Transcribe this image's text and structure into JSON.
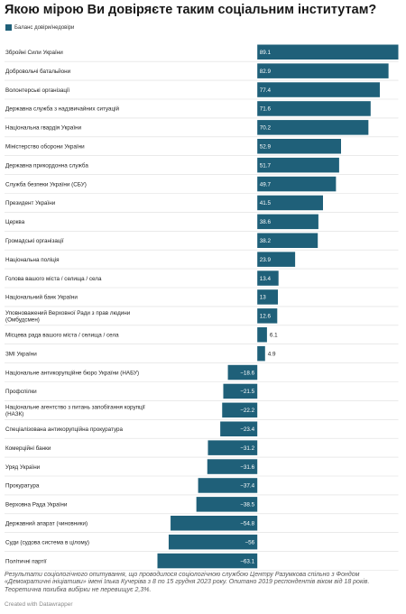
{
  "title": "Якою мірою Ви довіряєте таким соціальним інститутам?",
  "legend": {
    "label": "Баланс довіри/недовіри",
    "color": "#1f6079"
  },
  "chart_data": {
    "type": "bar",
    "orientation": "horizontal",
    "title": "Якою мірою Ви довіряєте таким соціальним інститутам?",
    "series": [
      {
        "name": "Баланс довіри/недовіри",
        "color": "#1f6079"
      }
    ],
    "grid": true,
    "legend_position": "top-left",
    "xlim": [
      -63.1,
      89.1
    ],
    "categories": [
      "Збройні Сили України",
      "Добровольчі батальйони",
      "Волонтерські організації",
      "Державна служба з надзвичайних ситуацій",
      "Національна гвардія України",
      "Міністерство оборони України",
      "Державна прикордонна служба",
      "Служба безпеки України (СБУ)",
      "Президент України",
      "Церква",
      "Громадські організації",
      "Національна поліція",
      "Голова вашого міста / селища / села",
      "Національний банк України",
      "Уповноважений Верховної Ради з прав людини (Омбудсмен)",
      "Місцева рада вашого міста / селища / села",
      "ЗМІ України",
      "Національне антикорупційне бюро України (НАБУ)",
      "Профспілки",
      "Національне агентство з питань запобігання корупції (НАЗК)",
      "Спеціалізована антикорупційна прокуратура",
      "Комерційні банки",
      "Уряд України",
      "Прокуратура",
      "Верховна Рада України",
      "Державний апарат (чиновники)",
      "Суди (судова система в цілому)",
      "Політичні партії"
    ],
    "values": [
      89.1,
      82.9,
      77.4,
      71.6,
      70.2,
      52.9,
      51.7,
      49.7,
      41.5,
      38.6,
      38.2,
      23.9,
      13.4,
      13,
      12.6,
      6.1,
      4.9,
      -18.6,
      -21.5,
      -22.2,
      -23.4,
      -31.2,
      -31.6,
      -37.4,
      -38.5,
      -54.8,
      -56,
      -63.1
    ],
    "value_labels": [
      "89.1",
      "82.9",
      "77.4",
      "71.6",
      "70.2",
      "52.9",
      "51.7",
      "49.7",
      "41.5",
      "38.6",
      "38.2",
      "23.9",
      "13.4",
      "13",
      "12.6",
      "6.1",
      "4.9",
      "−18.6",
      "−21.5",
      "−22.2",
      "−23.4",
      "−31.2",
      "−31.6",
      "−37.4",
      "−38.5",
      "−54.8",
      "−56",
      "−63.1"
    ]
  },
  "footnote": "Результати соціологічного опитування, що проводилося соціологічною службою Центру Разумкова спільно з Фондом «Демократичні ініціативи» імені Ількa Кучеріва з 8 по 15 грудня 2023 року. Опитано 2019 респондентів віком від 18 років. Теоретична похибка вибірки не перевищує 2,3%.",
  "credit": "Created with Datawrapper"
}
